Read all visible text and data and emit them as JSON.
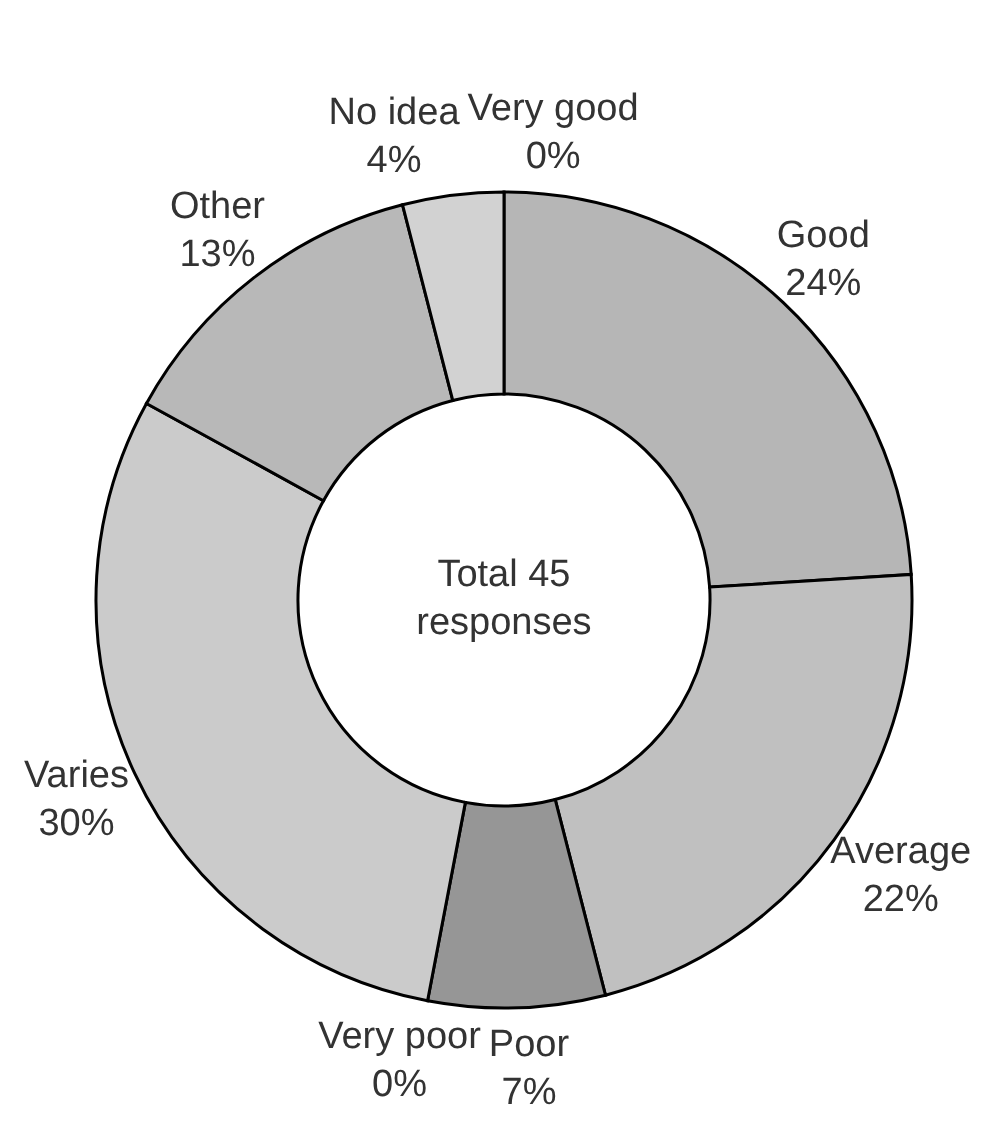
{
  "chart_data": {
    "type": "donut",
    "categories": [
      "Very good",
      "Good",
      "Average",
      "Poor",
      "Very poor",
      "Varies",
      "Other",
      "No idea"
    ],
    "values": [
      0,
      24,
      22,
      7,
      0,
      30,
      13,
      4
    ],
    "value_labels": [
      "0%",
      "24%",
      "22%",
      "7%",
      "0%",
      "30%",
      "13%",
      "4%"
    ],
    "colors": [
      "#d8d8d8",
      "#b6b6b6",
      "#c0c0c0",
      "#969696",
      "#808080",
      "#cbcbcb",
      "#b8b8b8",
      "#d2d2d2"
    ],
    "annotations": [
      "Total 45 responses"
    ]
  }
}
